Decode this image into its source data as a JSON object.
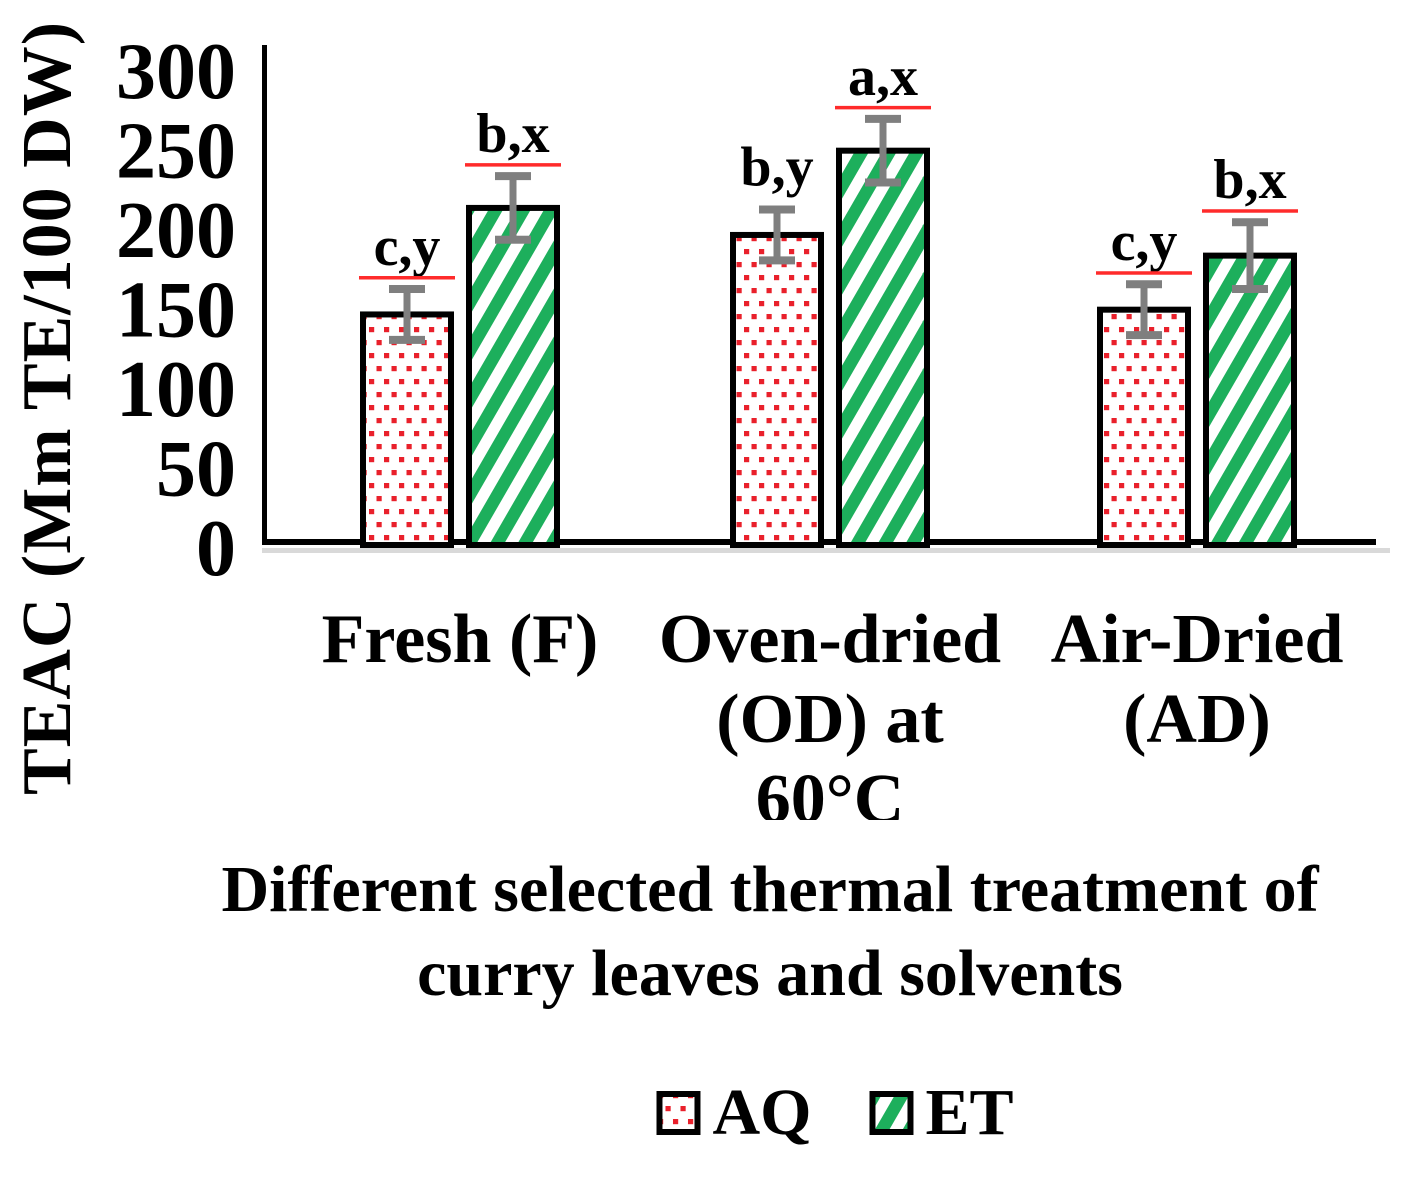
{
  "chart_data": {
    "type": "bar",
    "title": "",
    "xlabel": "Different selected thermal treatment of curry leaves and solvents",
    "ylabel": "TEAC (Mm TE/100 DW)",
    "ylim": [
      0,
      300
    ],
    "yticks": [
      0,
      50,
      100,
      150,
      200,
      250,
      300
    ],
    "grid": false,
    "legend_position": "bottom",
    "categories": [
      "Fresh (F)",
      "Oven-dried (OD) at 60°C",
      "Air-Dried (AD)"
    ],
    "category_lines": [
      [
        "Fresh (F)"
      ],
      [
        "Oven-dried",
        "(OD) at",
        "60°C"
      ],
      [
        "Air-Dried",
        "(AD)"
      ]
    ],
    "series": [
      {
        "name": "AQ",
        "pattern": "red-dotted",
        "color": "#e9202b",
        "values": [
          145,
          195,
          148
        ],
        "errors": [
          16,
          16,
          16
        ],
        "annotations": [
          "c,y",
          "b,y",
          "c,y"
        ],
        "annotation_underlined": [
          true,
          false,
          true
        ]
      },
      {
        "name": "ET",
        "pattern": "green-diagonal-stripes",
        "color": "#1daf5c",
        "values": [
          212,
          248,
          182
        ],
        "errors": [
          20,
          20,
          21
        ],
        "annotations": [
          "b,x",
          "a,x",
          "b,x"
        ],
        "annotation_underlined": [
          true,
          true,
          true
        ]
      }
    ],
    "error_bar_color": "#7f7f7f",
    "axis_color": "#000000",
    "axis_shadow_color": "#d9d9d9",
    "annotation_underline_color": "#ff2b2b",
    "bar_border_color": "#000000"
  }
}
